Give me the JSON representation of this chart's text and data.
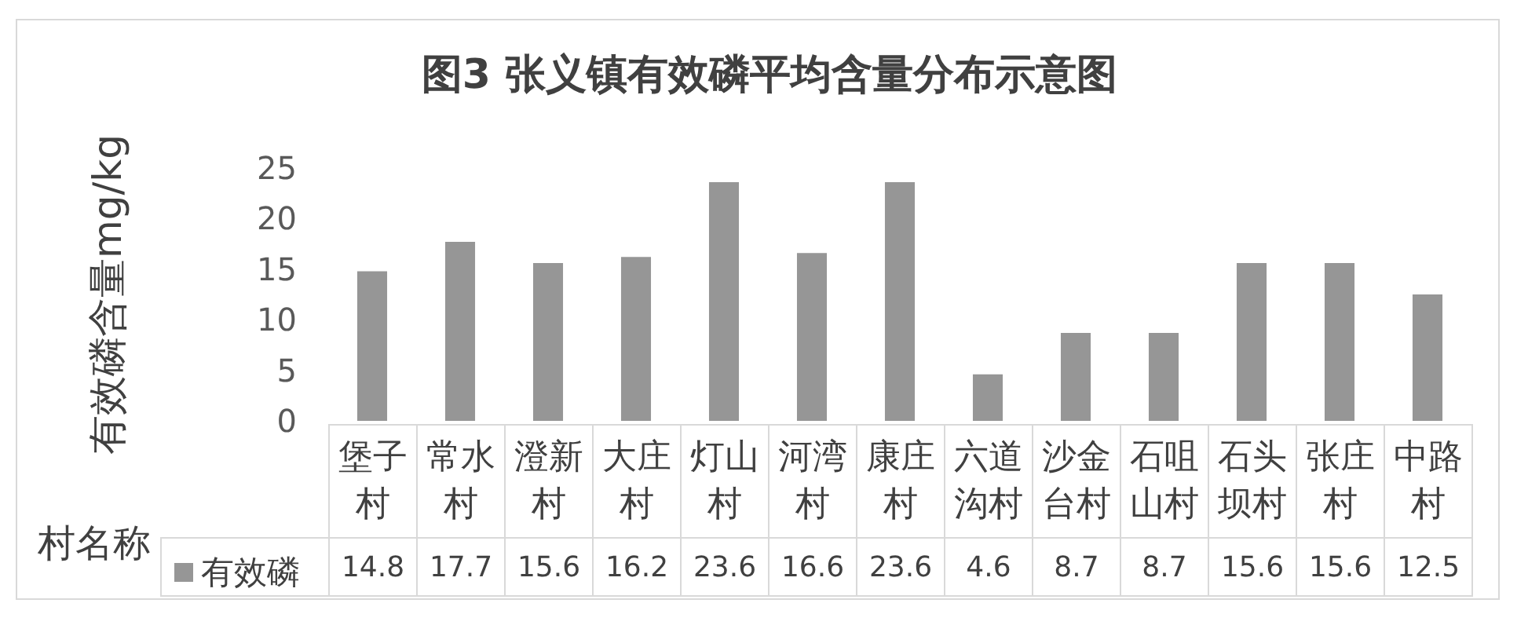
{
  "chart_data": {
    "type": "bar",
    "title": "图3 张义镇有效磷平均含量分布示意图",
    "xlabel": "村名称",
    "ylabel": "有效磷含量mg/kg",
    "categories": [
      "堡子村",
      "常水村",
      "澄新村",
      "大庄村",
      "灯山村",
      "河湾村",
      "康庄村",
      "六道沟村",
      "沙金台村",
      "石咀山村",
      "石头坝村",
      "张庄村",
      "中路村"
    ],
    "series": [
      {
        "name": "有效磷",
        "color": "#969696",
        "values": [
          14.8,
          17.7,
          15.6,
          16.2,
          23.6,
          16.6,
          23.6,
          4.6,
          8.7,
          8.7,
          15.6,
          15.6,
          12.5
        ]
      }
    ],
    "ylim": [
      0,
      25
    ],
    "yticks": [
      0,
      5,
      10,
      15,
      20,
      25
    ],
    "grid": false,
    "legend": "bottom left",
    "data_labels": true
  }
}
